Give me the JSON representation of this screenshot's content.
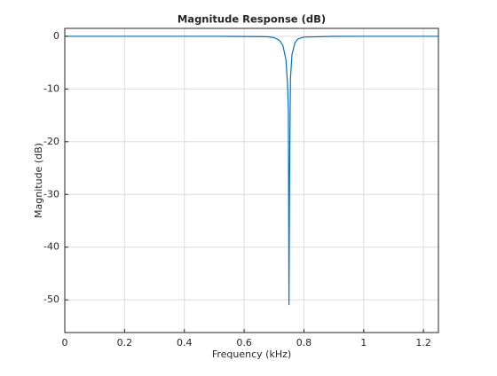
{
  "chart_data": {
    "type": "line",
    "title": "Magnitude Response (dB)",
    "x_label": "Frequency (kHz)",
    "y_label": "Magnitude (dB)",
    "x": [
      0,
      0.5,
      0.65,
      0.68,
      0.7,
      0.71,
      0.72,
      0.73,
      0.74,
      0.745,
      0.748,
      0.75,
      0.752,
      0.753,
      0.755,
      0.76,
      0.77,
      0.78,
      0.8,
      0.9,
      1.0,
      1.25
    ],
    "series": [
      {
        "name": "Magnitude",
        "color": "#0072bd",
        "values": [
          0,
          0,
          -0.05,
          -0.1,
          -0.25,
          -0.5,
          -0.9,
          -1.8,
          -4.5,
          -9,
          -14,
          -51,
          -27,
          -20,
          -8,
          -3.5,
          -1.2,
          -0.5,
          -0.15,
          -0.02,
          0,
          0
        ]
      }
    ],
    "xlim": [
      0,
      1.25
    ],
    "xticks": [
      0,
      0.2,
      0.4,
      0.6,
      0.8,
      1,
      1.2
    ],
    "ylim": [
      -56.2,
      1.5
    ],
    "yticks": [
      -50,
      -40,
      -30,
      -20,
      -10,
      0
    ],
    "grid": true
  }
}
